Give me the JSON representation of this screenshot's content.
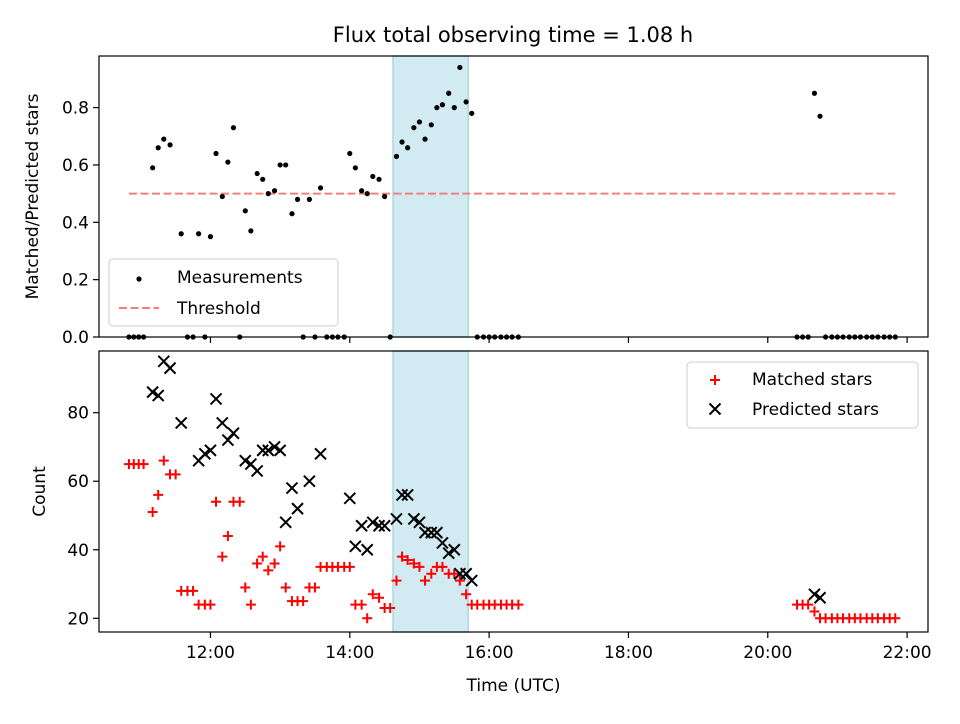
{
  "title": "Flux total observing time = 1.08 h",
  "colors": {
    "measurements": "#000000",
    "threshold": "#f08080",
    "highlight": "#add8e6",
    "matched": "#ff0000",
    "predicted": "#000000"
  },
  "chart_data": [
    {
      "type": "scatter",
      "ylabel": "Matched/Predicted stars",
      "xlim": [
        10.4,
        22.3
      ],
      "ylim": [
        0,
        0.98
      ],
      "yticks": [
        0.0,
        0.2,
        0.4,
        0.6,
        0.8
      ],
      "ytick_labels": [
        "0.0",
        "0.2",
        "0.4",
        "0.6",
        "0.8"
      ],
      "xticks": [
        12,
        14,
        16,
        18,
        20,
        22
      ],
      "highlight_span": [
        14.62,
        15.7
      ],
      "legend": {
        "position": "lower-left",
        "entries": [
          "Measurements",
          "Threshold"
        ]
      },
      "threshold": {
        "name": "Threshold",
        "value": 0.5,
        "x_range": [
          10.83,
          21.83
        ],
        "style": "dashed"
      },
      "series": [
        {
          "name": "Measurements",
          "marker": "dot",
          "points": [
            [
              10.83,
              0
            ],
            [
              10.9,
              0
            ],
            [
              10.97,
              0
            ],
            [
              11.04,
              0
            ],
            [
              11.17,
              0.59
            ],
            [
              11.25,
              0.66
            ],
            [
              11.33,
              0.69
            ],
            [
              11.42,
              0.67
            ],
            [
              11.58,
              0.36
            ],
            [
              11.67,
              0
            ],
            [
              11.75,
              0
            ],
            [
              11.83,
              0.36
            ],
            [
              11.92,
              0
            ],
            [
              12.0,
              0.35
            ],
            [
              12.08,
              0.64
            ],
            [
              12.17,
              0.49
            ],
            [
              12.25,
              0.61
            ],
            [
              12.33,
              0.73
            ],
            [
              12.42,
              0
            ],
            [
              12.5,
              0.44
            ],
            [
              12.58,
              0.37
            ],
            [
              12.67,
              0.57
            ],
            [
              12.75,
              0.55
            ],
            [
              12.83,
              0.5
            ],
            [
              12.92,
              0.51
            ],
            [
              13.0,
              0.6
            ],
            [
              13.08,
              0.6
            ],
            [
              13.17,
              0.43
            ],
            [
              13.25,
              0.48
            ],
            [
              13.33,
              0
            ],
            [
              13.42,
              0.48
            ],
            [
              13.5,
              0
            ],
            [
              13.58,
              0.52
            ],
            [
              13.67,
              0
            ],
            [
              13.75,
              0
            ],
            [
              13.83,
              0
            ],
            [
              13.92,
              0
            ],
            [
              14.0,
              0.64
            ],
            [
              14.08,
              0.59
            ],
            [
              14.17,
              0.51
            ],
            [
              14.25,
              0.5
            ],
            [
              14.33,
              0.56
            ],
            [
              14.42,
              0.55
            ],
            [
              14.5,
              0.49
            ],
            [
              14.58,
              0
            ],
            [
              14.67,
              0.63
            ],
            [
              14.75,
              0.68
            ],
            [
              14.83,
              0.66
            ],
            [
              14.92,
              0.73
            ],
            [
              15.0,
              0.75
            ],
            [
              15.08,
              0.69
            ],
            [
              15.17,
              0.74
            ],
            [
              15.25,
              0.8
            ],
            [
              15.33,
              0.81
            ],
            [
              15.42,
              0.85
            ],
            [
              15.5,
              0.8
            ],
            [
              15.58,
              0.94
            ],
            [
              15.67,
              0.82
            ],
            [
              15.75,
              0.78
            ],
            [
              15.83,
              0
            ],
            [
              15.92,
              0
            ],
            [
              16.0,
              0
            ],
            [
              16.08,
              0
            ],
            [
              16.17,
              0
            ],
            [
              16.25,
              0
            ],
            [
              16.33,
              0
            ],
            [
              16.42,
              0
            ],
            [
              20.42,
              0
            ],
            [
              20.5,
              0
            ],
            [
              20.58,
              0
            ],
            [
              20.67,
              0.85
            ],
            [
              20.75,
              0.77
            ],
            [
              20.83,
              0
            ],
            [
              20.92,
              0
            ],
            [
              21.0,
              0
            ],
            [
              21.08,
              0
            ],
            [
              21.17,
              0
            ],
            [
              21.25,
              0
            ],
            [
              21.33,
              0
            ],
            [
              21.42,
              0
            ],
            [
              21.5,
              0
            ],
            [
              21.58,
              0
            ],
            [
              21.67,
              0
            ],
            [
              21.75,
              0
            ],
            [
              21.83,
              0
            ]
          ]
        }
      ]
    },
    {
      "type": "scatter",
      "ylabel": "Count",
      "xlabel": "Time (UTC)",
      "xlim": [
        10.4,
        22.3
      ],
      "ylim": [
        16,
        98
      ],
      "yticks": [
        20,
        40,
        60,
        80
      ],
      "ytick_labels": [
        "20",
        "40",
        "60",
        "80"
      ],
      "xticks": [
        12,
        14,
        16,
        18,
        20,
        22
      ],
      "xtick_labels": [
        "12:00",
        "14:00",
        "16:00",
        "18:00",
        "20:00",
        "22:00"
      ],
      "highlight_span": [
        14.62,
        15.7
      ],
      "legend": {
        "position": "upper-right",
        "entries": [
          "Matched stars",
          "Predicted stars"
        ]
      },
      "series": [
        {
          "name": "Matched stars",
          "marker": "plus",
          "points": [
            [
              10.83,
              65
            ],
            [
              10.9,
              65
            ],
            [
              10.97,
              65
            ],
            [
              11.04,
              65
            ],
            [
              11.17,
              51
            ],
            [
              11.25,
              56
            ],
            [
              11.33,
              66
            ],
            [
              11.42,
              62
            ],
            [
              11.5,
              62
            ],
            [
              11.58,
              28
            ],
            [
              11.67,
              28
            ],
            [
              11.75,
              28
            ],
            [
              11.83,
              24
            ],
            [
              11.92,
              24
            ],
            [
              12.0,
              24
            ],
            [
              12.08,
              54
            ],
            [
              12.17,
              38
            ],
            [
              12.25,
              44
            ],
            [
              12.33,
              54
            ],
            [
              12.42,
              54
            ],
            [
              12.5,
              29
            ],
            [
              12.58,
              24
            ],
            [
              12.67,
              36
            ],
            [
              12.75,
              38
            ],
            [
              12.83,
              34
            ],
            [
              12.92,
              36
            ],
            [
              13.0,
              41
            ],
            [
              13.08,
              29
            ],
            [
              13.17,
              25
            ],
            [
              13.25,
              25
            ],
            [
              13.33,
              25
            ],
            [
              13.42,
              29
            ],
            [
              13.5,
              29
            ],
            [
              13.58,
              35
            ],
            [
              13.67,
              35
            ],
            [
              13.75,
              35
            ],
            [
              13.83,
              35
            ],
            [
              13.92,
              35
            ],
            [
              14.0,
              35
            ],
            [
              14.08,
              24
            ],
            [
              14.17,
              24
            ],
            [
              14.25,
              20
            ],
            [
              14.33,
              27
            ],
            [
              14.42,
              26
            ],
            [
              14.5,
              23
            ],
            [
              14.58,
              23
            ],
            [
              14.67,
              31
            ],
            [
              14.75,
              38
            ],
            [
              14.83,
              37
            ],
            [
              14.92,
              36
            ],
            [
              15.0,
              35
            ],
            [
              15.08,
              31
            ],
            [
              15.17,
              33
            ],
            [
              15.25,
              35
            ],
            [
              15.33,
              35
            ],
            [
              15.42,
              33
            ],
            [
              15.5,
              33
            ],
            [
              15.58,
              31
            ],
            [
              15.67,
              27
            ],
            [
              15.75,
              24
            ],
            [
              15.83,
              24
            ],
            [
              15.92,
              24
            ],
            [
              16.0,
              24
            ],
            [
              16.08,
              24
            ],
            [
              16.17,
              24
            ],
            [
              16.25,
              24
            ],
            [
              16.33,
              24
            ],
            [
              16.42,
              24
            ],
            [
              20.42,
              24
            ],
            [
              20.5,
              24
            ],
            [
              20.58,
              24
            ],
            [
              20.67,
              22
            ],
            [
              20.75,
              20
            ],
            [
              20.83,
              20
            ],
            [
              20.92,
              20
            ],
            [
              21.0,
              20
            ],
            [
              21.08,
              20
            ],
            [
              21.17,
              20
            ],
            [
              21.25,
              20
            ],
            [
              21.33,
              20
            ],
            [
              21.42,
              20
            ],
            [
              21.5,
              20
            ],
            [
              21.58,
              20
            ],
            [
              21.67,
              20
            ],
            [
              21.75,
              20
            ],
            [
              21.83,
              20
            ]
          ]
        },
        {
          "name": "Predicted stars",
          "marker": "x",
          "points": [
            [
              11.17,
              86
            ],
            [
              11.25,
              85
            ],
            [
              11.33,
              95
            ],
            [
              11.42,
              93
            ],
            [
              11.58,
              77
            ],
            [
              11.83,
              66
            ],
            [
              11.92,
              68
            ],
            [
              12.0,
              69
            ],
            [
              12.08,
              84
            ],
            [
              12.17,
              77
            ],
            [
              12.25,
              72
            ],
            [
              12.33,
              74
            ],
            [
              12.5,
              66
            ],
            [
              12.58,
              65
            ],
            [
              12.67,
              63
            ],
            [
              12.75,
              69
            ],
            [
              12.83,
              69
            ],
            [
              12.92,
              70
            ],
            [
              13.0,
              69
            ],
            [
              13.08,
              48
            ],
            [
              13.17,
              58
            ],
            [
              13.25,
              52
            ],
            [
              13.42,
              60
            ],
            [
              13.58,
              68
            ],
            [
              14.0,
              55
            ],
            [
              14.08,
              41
            ],
            [
              14.17,
              47
            ],
            [
              14.25,
              40
            ],
            [
              14.33,
              48
            ],
            [
              14.42,
              47
            ],
            [
              14.5,
              47
            ],
            [
              14.67,
              49
            ],
            [
              14.75,
              56
            ],
            [
              14.83,
              56
            ],
            [
              14.92,
              49
            ],
            [
              15.0,
              48
            ],
            [
              15.08,
              45
            ],
            [
              15.17,
              45
            ],
            [
              15.25,
              45
            ],
            [
              15.33,
              42
            ],
            [
              15.42,
              39
            ],
            [
              15.5,
              40
            ],
            [
              15.58,
              33
            ],
            [
              15.67,
              33
            ],
            [
              15.75,
              31
            ],
            [
              20.67,
              27
            ],
            [
              20.75,
              26
            ]
          ]
        }
      ]
    }
  ]
}
